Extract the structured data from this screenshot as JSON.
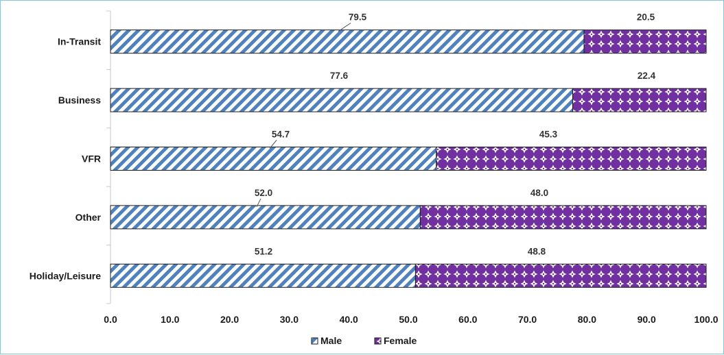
{
  "chart_data": {
    "type": "bar",
    "orientation": "horizontal",
    "stacked": true,
    "categories": [
      "In-Transit",
      "Business",
      "VFR",
      "Other",
      "Holiday/Leisure"
    ],
    "series": [
      {
        "name": "Male",
        "values": [
          79.5,
          77.6,
          54.7,
          52.0,
          51.2
        ],
        "color": "#4f81bd",
        "pattern": "diagonal-stripes"
      },
      {
        "name": "Female",
        "values": [
          20.5,
          22.4,
          45.3,
          48.0,
          48.8
        ],
        "color": "#7030a0",
        "pattern": "diamond-dots"
      }
    ],
    "data_labels": {
      "Male": [
        "79.5",
        "77.6",
        "54.7",
        "52.0",
        "51.2"
      ],
      "Female": [
        "20.5",
        "22.4",
        "45.3",
        "48.0",
        "48.8"
      ]
    },
    "xlim": [
      0,
      100
    ],
    "xticks": [
      "0.0",
      "10.0",
      "20.0",
      "30.0",
      "40.0",
      "50.0",
      "60.0",
      "70.0",
      "80.0",
      "90.0",
      "100.0"
    ],
    "grid": false,
    "legend_position": "bottom-center",
    "legend": [
      "Male",
      "Female"
    ]
  }
}
